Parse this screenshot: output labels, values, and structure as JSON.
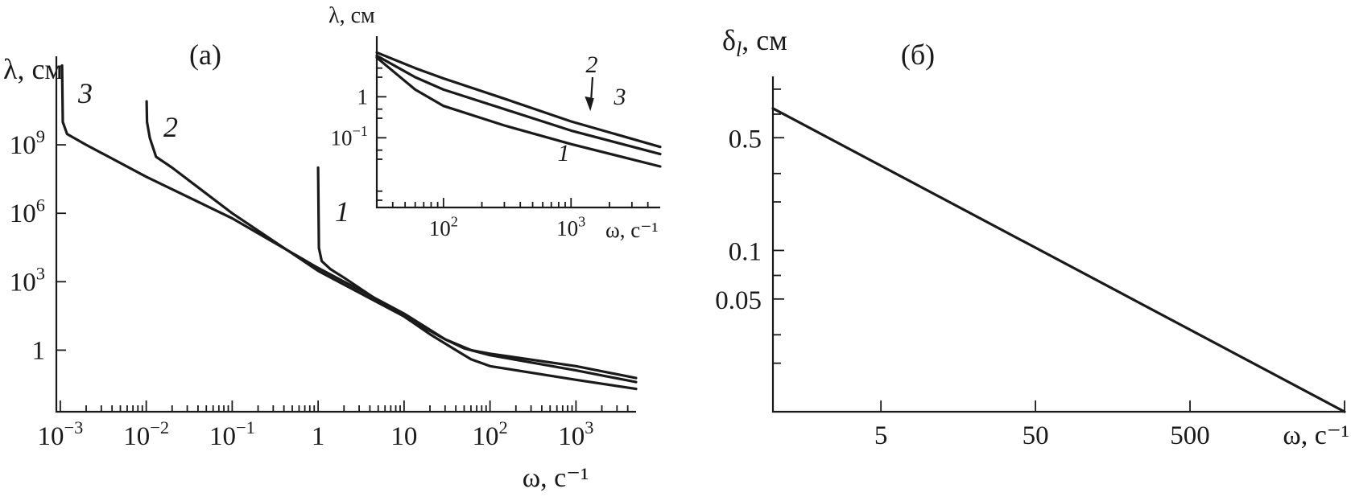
{
  "chart_data": [
    {
      "id": "a",
      "type": "line",
      "panel_label": "(а)",
      "ylabel": "λ, см",
      "xlabel": "ω, с⁻¹",
      "x_scale": "log",
      "y_scale": "log",
      "xlim": [
        0.0009,
        5000
      ],
      "ylim": [
        0.002,
        1000000000000.0
      ],
      "x_ticks": [
        {
          "v": 0.001,
          "base": "10",
          "exp": "−3"
        },
        {
          "v": 0.01,
          "base": "10",
          "exp": "−2"
        },
        {
          "v": 0.1,
          "base": "10",
          "exp": "−1"
        },
        {
          "v": 1,
          "base": "1",
          "exp": ""
        },
        {
          "v": 10,
          "base": "10",
          "exp": ""
        },
        {
          "v": 100,
          "base": "10",
          "exp": "2"
        },
        {
          "v": 1000,
          "base": "10",
          "exp": "3"
        }
      ],
      "y_ticks": [
        {
          "v": 1,
          "base": "1",
          "exp": ""
        },
        {
          "v": 1000,
          "base": "10",
          "exp": "3"
        },
        {
          "v": 1000000,
          "base": "10",
          "exp": "6"
        },
        {
          "v": 1000000000,
          "base": "10",
          "exp": "9"
        }
      ],
      "series": [
        {
          "name": "1",
          "x": [
            1.0,
            1.02,
            1.1,
            1.4,
            2,
            5,
            10,
            20,
            40,
            60,
            100,
            1000,
            5000
          ],
          "y": [
            100000000.0,
            30000.0,
            8000.0,
            3500.0,
            1500.0,
            150,
            30,
            5,
            1,
            0.4,
            0.2,
            0.05,
            0.02
          ]
        },
        {
          "name": "2",
          "x": [
            0.0101,
            0.0102,
            0.011,
            0.013,
            0.02,
            0.1,
            1,
            10,
            30,
            50,
            100,
            1000,
            5000
          ],
          "y": [
            80000000000.0,
            10000000000.0,
            2000000000.0,
            300000000.0,
            100000000.0,
            1000000.0,
            3000.0,
            30,
            3,
            1.2,
            0.6,
            0.13,
            0.04
          ]
        },
        {
          "name": "3",
          "x": [
            0.00105,
            0.00107,
            0.0012,
            0.002,
            0.01,
            0.1,
            1,
            10,
            30,
            60,
            100,
            1000,
            5000
          ],
          "y": [
            3000000000000.0,
            10000000000.0,
            3000000000.0,
            1000000000.0,
            40000000.0,
            600000.0,
            4000.0,
            40,
            3,
            1.0,
            0.7,
            0.2,
            0.06
          ]
        }
      ],
      "inset": {
        "ylabel": "λ, см",
        "xlabel": "ω, с⁻¹",
        "x_scale": "log",
        "y_scale": "log",
        "xlim": [
          30,
          5000
        ],
        "ylim": [
          0.002,
          30
        ],
        "x_ticks": [
          {
            "v": 100,
            "base": "10",
            "exp": "2"
          },
          {
            "v": 1000,
            "base": "10",
            "exp": "3"
          }
        ],
        "y_ticks": [
          {
            "v": 1,
            "base": "1",
            "exp": ""
          },
          {
            "v": 0.1,
            "base": "10",
            "exp": "−1"
          }
        ],
        "series": [
          {
            "name": "1",
            "x": [
              30,
              60,
              100,
              300,
              1000,
              5000
            ],
            "y": [
              9,
              1.5,
              0.6,
              0.2,
              0.07,
              0.02
            ]
          },
          {
            "name": "2",
            "x": [
              30,
              60,
              100,
              300,
              1000,
              5000
            ],
            "y": [
              10,
              3.0,
              1.5,
              0.5,
              0.15,
              0.04
            ]
          },
          {
            "name": "3",
            "x": [
              30,
              60,
              100,
              300,
              1000,
              5000
            ],
            "y": [
              12,
              5.0,
              2.8,
              0.9,
              0.25,
              0.06
            ]
          }
        ],
        "annotation_arrow_series": "2"
      }
    },
    {
      "id": "b",
      "type": "line",
      "panel_label": "(б)",
      "ylabel": "δ",
      "ylabel_sub": "l",
      "ylabel_suffix": ", см",
      "xlabel": "ω, с⁻¹",
      "x_scale": "log",
      "y_scale": "log",
      "xlim": [
        1,
        5000
      ],
      "ylim": [
        0.01,
        1.2
      ],
      "x_ticks": [
        {
          "v": 5,
          "label": "5"
        },
        {
          "v": 50,
          "label": "50"
        },
        {
          "v": 500,
          "label": "500"
        }
      ],
      "y_ticks": [
        {
          "v": 0.5,
          "label": "0.5"
        },
        {
          "v": 0.1,
          "label": "0.1"
        },
        {
          "v": 0.05,
          "label": "0.05"
        }
      ],
      "series": [
        {
          "x": [
            1,
            5000
          ],
          "y": [
            0.76,
            0.01
          ]
        }
      ]
    }
  ]
}
